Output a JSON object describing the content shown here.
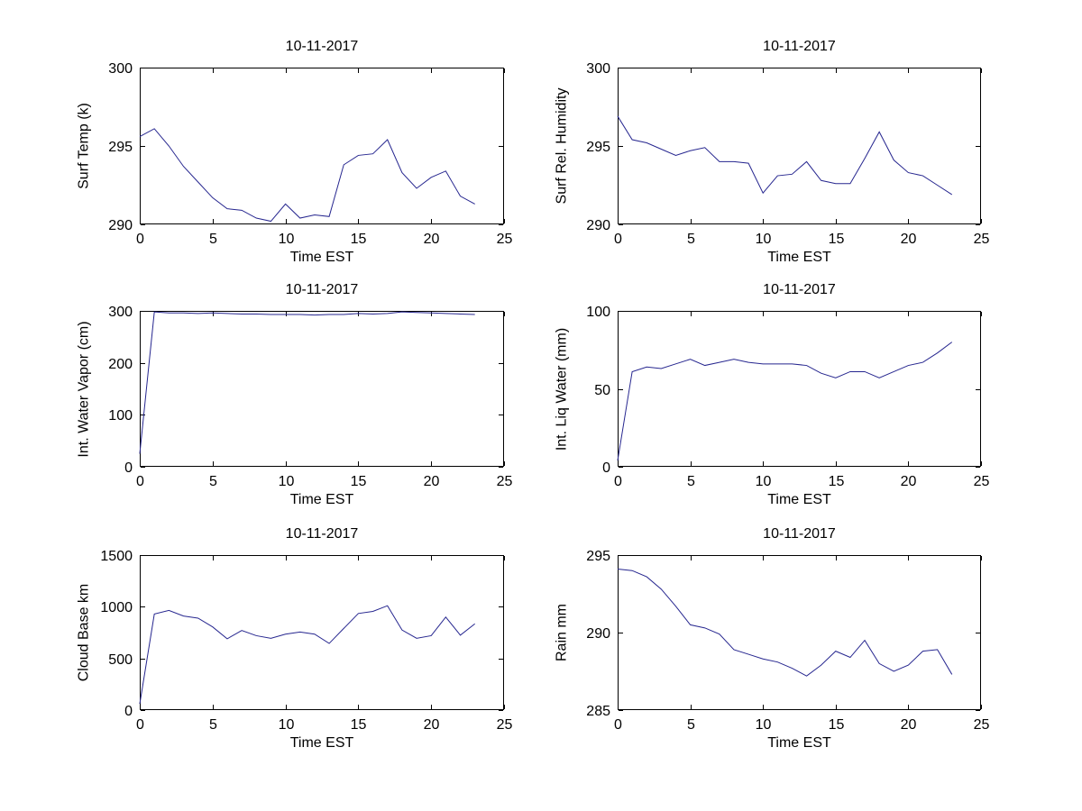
{
  "figure": {
    "background": "#ffffff",
    "axis_color": "#000000",
    "line_color": "#26268f"
  },
  "chart_data": [
    {
      "type": "line",
      "title": "10-11-2017",
      "xlabel": "Time EST",
      "ylabel": "Surf Temp (k)",
      "xlim": [
        0,
        25
      ],
      "ylim": [
        290,
        300
      ],
      "xticks": [
        0,
        5,
        10,
        15,
        20,
        25
      ],
      "yticks": [
        290,
        295,
        300
      ],
      "grid": false,
      "legend": null,
      "x": [
        0,
        1,
        2,
        3,
        4,
        5,
        6,
        7,
        8,
        9,
        10,
        11,
        12,
        13,
        14,
        15,
        16,
        17,
        18,
        19,
        20,
        21,
        22,
        23
      ],
      "values": [
        295.6,
        296.1,
        295.0,
        293.7,
        292.7,
        291.7,
        291.0,
        290.9,
        290.4,
        290.2,
        291.3,
        290.4,
        290.6,
        290.5,
        293.8,
        294.4,
        294.5,
        295.4,
        293.3,
        292.3,
        293.0,
        293.4,
        291.8,
        291.3
      ]
    },
    {
      "type": "line",
      "title": "10-11-2017",
      "xlabel": "Time EST",
      "ylabel": "Surf Rel. Humidity",
      "xlim": [
        0,
        25
      ],
      "ylim": [
        290,
        300
      ],
      "xticks": [
        0,
        5,
        10,
        15,
        20,
        25
      ],
      "yticks": [
        290,
        295,
        300
      ],
      "grid": false,
      "legend": null,
      "x": [
        0,
        1,
        2,
        3,
        4,
        5,
        6,
        7,
        8,
        9,
        10,
        11,
        12,
        13,
        14,
        15,
        16,
        17,
        18,
        19,
        20,
        21,
        22,
        23
      ],
      "values": [
        296.9,
        295.4,
        295.2,
        294.8,
        294.4,
        294.7,
        294.9,
        294.0,
        294.0,
        293.9,
        292.0,
        293.1,
        293.2,
        294.0,
        292.8,
        292.6,
        292.6,
        294.2,
        295.9,
        294.1,
        293.3,
        293.1,
        292.5,
        291.9
      ]
    },
    {
      "type": "line",
      "title": "10-11-2017",
      "xlabel": "Time EST",
      "ylabel": "Int. Water Vapor (cm)",
      "xlim": [
        0,
        25
      ],
      "ylim": [
        0,
        300
      ],
      "xticks": [
        0,
        5,
        10,
        15,
        20,
        25
      ],
      "yticks": [
        0,
        100,
        200,
        300
      ],
      "grid": false,
      "legend": null,
      "x": [
        0,
        1,
        2,
        3,
        4,
        5,
        6,
        7,
        8,
        9,
        10,
        11,
        12,
        13,
        14,
        15,
        16,
        17,
        18,
        19,
        20,
        21,
        22,
        23
      ],
      "values": [
        25,
        298,
        296,
        296,
        295,
        296,
        295,
        294,
        294,
        293,
        293,
        293,
        292,
        293,
        293,
        295,
        294,
        295,
        298,
        297,
        296,
        295,
        294,
        293
      ]
    },
    {
      "type": "line",
      "title": "10-11-2017",
      "xlabel": "Time EST",
      "ylabel": "Int. Liq Water (mm)",
      "xlim": [
        0,
        25
      ],
      "ylim": [
        0,
        100
      ],
      "xticks": [
        0,
        5,
        10,
        15,
        20,
        25
      ],
      "yticks": [
        0,
        50,
        100
      ],
      "grid": false,
      "legend": null,
      "x": [
        0,
        1,
        2,
        3,
        4,
        5,
        6,
        7,
        8,
        9,
        10,
        11,
        12,
        13,
        14,
        15,
        16,
        17,
        18,
        19,
        20,
        21,
        22,
        23
      ],
      "values": [
        4,
        61,
        64,
        63,
        66,
        69,
        65,
        67,
        69,
        67,
        66,
        66,
        66,
        65,
        60,
        57,
        61,
        61,
        57,
        61,
        65,
        67,
        73,
        80
      ]
    },
    {
      "type": "line",
      "title": "10-11-2017",
      "xlabel": "Time EST",
      "ylabel": "Cloud Base km",
      "xlim": [
        0,
        25
      ],
      "ylim": [
        0,
        1500
      ],
      "xticks": [
        0,
        5,
        10,
        15,
        20,
        25
      ],
      "yticks": [
        0,
        500,
        1000,
        1500
      ],
      "grid": false,
      "legend": null,
      "x": [
        0,
        1,
        2,
        3,
        4,
        5,
        6,
        7,
        8,
        9,
        10,
        11,
        12,
        13,
        14,
        15,
        16,
        17,
        18,
        19,
        20,
        21,
        22,
        23
      ],
      "values": [
        60,
        930,
        965,
        910,
        890,
        805,
        690,
        770,
        720,
        695,
        735,
        755,
        735,
        645,
        790,
        935,
        955,
        1010,
        775,
        695,
        720,
        900,
        725,
        835
      ]
    },
    {
      "type": "line",
      "title": "10-11-2017",
      "xlabel": "Time EST",
      "ylabel": "Rain mm",
      "xlim": [
        0,
        25
      ],
      "ylim": [
        285,
        295
      ],
      "xticks": [
        0,
        5,
        10,
        15,
        20,
        25
      ],
      "yticks": [
        285,
        290,
        295
      ],
      "grid": false,
      "legend": null,
      "x": [
        0,
        1,
        2,
        3,
        4,
        5,
        6,
        7,
        8,
        9,
        10,
        11,
        12,
        13,
        14,
        15,
        16,
        17,
        18,
        19,
        20,
        21,
        22,
        23
      ],
      "values": [
        294.1,
        294.0,
        293.6,
        292.8,
        291.7,
        290.5,
        290.3,
        289.9,
        288.9,
        288.6,
        288.3,
        288.1,
        287.7,
        287.2,
        287.9,
        288.8,
        288.4,
        289.5,
        288.0,
        287.5,
        287.9,
        288.8,
        288.9,
        287.3
      ]
    }
  ]
}
